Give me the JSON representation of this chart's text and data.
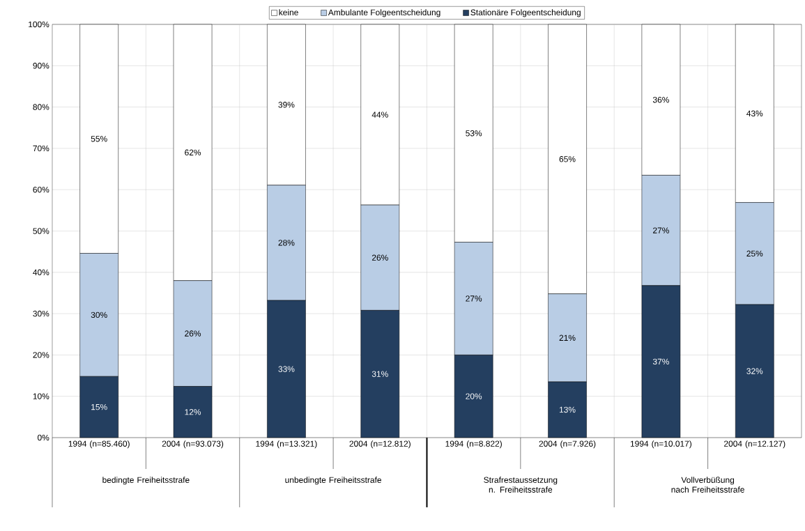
{
  "chart_data": {
    "type": "bar",
    "stacked": true,
    "grid": true,
    "legend": "top",
    "categories": [
      "1994 (n=85.460)",
      "2004 (n=93.073)",
      "1994 (n=13.321)",
      "2004 (n=12.812)",
      "1994 (n=8.822)",
      "2004 (n=7.926)",
      "1994 (n=10.017)",
      "2004 (n=12.127)"
    ],
    "ylim": [
      0,
      100
    ],
    "yticks": [
      {
        "value": 0,
        "label": "0%"
      },
      {
        "value": 10,
        "label": "10%"
      },
      {
        "value": 20,
        "label": "20%"
      },
      {
        "value": 30,
        "label": "30%"
      },
      {
        "value": 40,
        "label": "40%"
      },
      {
        "value": 50,
        "label": "50%"
      },
      {
        "value": 60,
        "label": "60%"
      },
      {
        "value": 70,
        "label": "70%"
      },
      {
        "value": 80,
        "label": "80%"
      },
      {
        "value": 90,
        "label": "90%"
      },
      {
        "value": 100,
        "label": "100%"
      }
    ],
    "series": [
      {
        "name": "Stationäre Folgeentscheidung",
        "color": "#243f60",
        "values": [
          14.8,
          12.4,
          33.2,
          30.8,
          20.0,
          13.5,
          36.8,
          32.2
        ],
        "value_labels": [
          "15%",
          "12%",
          "33%",
          "31%",
          "20%",
          "13%",
          "37%",
          "32%"
        ]
      },
      {
        "name": "Ambulante Folgeentscheidung",
        "color": "#b9cde5",
        "values": [
          29.8,
          25.6,
          27.9,
          25.5,
          27.3,
          21.3,
          26.7,
          24.7
        ],
        "value_labels": [
          "30%",
          "26%",
          "28%",
          "26%",
          "27%",
          "21%",
          "27%",
          "25%"
        ]
      },
      {
        "name": "keine",
        "color": "#ffffff",
        "values": [
          55.4,
          62.0,
          38.9,
          43.7,
          52.7,
          65.2,
          36.5,
          43.1
        ],
        "value_labels": [
          "55%",
          "62%",
          "39%",
          "44%",
          "53%",
          "65%",
          "36%",
          "43%"
        ]
      }
    ],
    "annotations": [
      "bedingte Freiheitsstrafe",
      "unbedingte Freiheitsstrafe",
      "Strafrestaussetzung n. Freiheitsstrafe",
      "Vollverbüßung nach Freiheitsstrafe"
    ]
  }
}
